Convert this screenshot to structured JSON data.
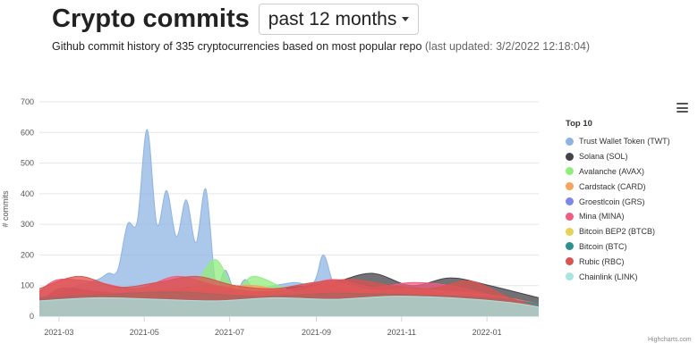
{
  "header": {
    "title": "Crypto commits",
    "range_value": "past 12 months"
  },
  "subtitle": {
    "text": "Github commit history of 335 cryptocurrencies based on most popular repo",
    "updated": "(last updated: 3/2/2022 12:18:04)"
  },
  "legend": {
    "title": "Top 10"
  },
  "credits": "Highcharts.com",
  "chart_data": {
    "type": "area",
    "title": "",
    "xlabel": "",
    "ylabel": "# commits",
    "ylim": [
      0,
      700
    ],
    "yticks": [
      0,
      100,
      200,
      300,
      400,
      500,
      600,
      700
    ],
    "xlim": [
      "2021-02-15",
      "2022-02-07"
    ],
    "xticks": [
      "2021-03",
      "2021-05",
      "2021-07",
      "2021-09",
      "2021-11",
      "2022-01"
    ],
    "grid": true,
    "legend_position": "right",
    "series": [
      {
        "name": "Trust Wallet Token (TWT)",
        "color": "#8fb4e3",
        "x": [
          "2021-02-15",
          "2021-03-01",
          "2021-03-15",
          "2021-03-29",
          "2021-04-05",
          "2021-04-12",
          "2021-04-19",
          "2021-04-26",
          "2021-05-03",
          "2021-05-10",
          "2021-05-17",
          "2021-05-24",
          "2021-05-31",
          "2021-06-07",
          "2021-06-14",
          "2021-06-21",
          "2021-06-28",
          "2021-07-05",
          "2021-07-12",
          "2021-07-19",
          "2021-08-02",
          "2021-08-16",
          "2021-08-30",
          "2021-09-06",
          "2021-09-13",
          "2021-09-20",
          "2021-10-04",
          "2021-10-18",
          "2021-11-01",
          "2021-11-15",
          "2021-11-29",
          "2021-12-13",
          "2021-12-27",
          "2022-01-10",
          "2022-01-24",
          "2022-02-07"
        ],
        "y": [
          60,
          80,
          100,
          120,
          140,
          150,
          300,
          310,
          610,
          300,
          410,
          260,
          380,
          240,
          415,
          110,
          150,
          80,
          120,
          90,
          100,
          110,
          110,
          200,
          110,
          90,
          100,
          95,
          100,
          90,
          70,
          65,
          60,
          50,
          45,
          20
        ]
      },
      {
        "name": "Solana (SOL)",
        "color": "#434348",
        "x": [
          "2021-02-15",
          "2021-03-01",
          "2021-03-29",
          "2021-04-26",
          "2021-05-24",
          "2021-06-21",
          "2021-07-19",
          "2021-08-16",
          "2021-09-13",
          "2021-10-11",
          "2021-11-08",
          "2021-12-06",
          "2022-01-03",
          "2022-02-07"
        ],
        "y": [
          30,
          90,
          80,
          70,
          90,
          100,
          80,
          95,
          110,
          140,
          100,
          125,
          100,
          60
        ]
      },
      {
        "name": "Avalanche (AVAX)",
        "color": "#90ed7d",
        "x": [
          "2021-02-15",
          "2021-03-29",
          "2021-04-26",
          "2021-05-24",
          "2021-06-07",
          "2021-06-21",
          "2021-07-05",
          "2021-07-19",
          "2021-08-16",
          "2021-09-13",
          "2021-10-11",
          "2021-11-08",
          "2021-12-06",
          "2022-01-03",
          "2022-02-07"
        ],
        "y": [
          40,
          50,
          60,
          70,
          110,
          185,
          90,
          130,
          80,
          70,
          60,
          55,
          50,
          40,
          25
        ]
      },
      {
        "name": "Cardstack (CARD)",
        "color": "#f7a35c",
        "x": [
          "2021-02-15",
          "2021-03-29",
          "2021-04-26",
          "2021-05-24",
          "2021-06-21",
          "2021-07-19",
          "2021-08-16",
          "2021-09-13",
          "2021-10-11",
          "2021-11-08",
          "2021-12-06",
          "2022-01-03",
          "2022-02-07"
        ],
        "y": [
          50,
          70,
          80,
          90,
          95,
          100,
          80,
          110,
          85,
          90,
          80,
          70,
          40
        ]
      },
      {
        "name": "Groestlcoin (GRS)",
        "color": "#8085e9",
        "x": [
          "2021-02-15",
          "2021-04-12",
          "2021-06-07",
          "2021-08-02",
          "2021-09-27",
          "2021-11-22",
          "2022-02-07"
        ],
        "y": [
          40,
          50,
          45,
          60,
          50,
          45,
          30
        ]
      },
      {
        "name": "Mina (MINA)",
        "color": "#f15c80",
        "x": [
          "2021-02-15",
          "2021-03-01",
          "2021-03-29",
          "2021-04-26",
          "2021-05-24",
          "2021-06-21",
          "2021-07-19",
          "2021-08-16",
          "2021-09-13",
          "2021-10-11",
          "2021-11-08",
          "2021-12-06",
          "2022-01-03",
          "2022-02-07"
        ],
        "y": [
          80,
          120,
          110,
          90,
          130,
          100,
          80,
          90,
          120,
          95,
          110,
          100,
          70,
          40
        ]
      },
      {
        "name": "Bitcoin BEP2 (BTCB)",
        "color": "#e4d354",
        "x": [
          "2021-02-15",
          "2021-04-12",
          "2021-06-07",
          "2021-08-02",
          "2021-09-27",
          "2021-11-22",
          "2022-02-07"
        ],
        "y": [
          20,
          30,
          40,
          35,
          50,
          40,
          20
        ]
      },
      {
        "name": "Bitcoin (BTC)",
        "color": "#2b908f",
        "x": [
          "2021-02-15",
          "2021-03-29",
          "2021-05-24",
          "2021-07-19",
          "2021-09-13",
          "2021-11-08",
          "2022-01-03",
          "2022-02-07"
        ],
        "y": [
          60,
          70,
          80,
          65,
          75,
          70,
          60,
          40
        ]
      },
      {
        "name": "Rubic (RBC)",
        "color": "#d9534f",
        "x": [
          "2021-02-15",
          "2021-03-15",
          "2021-04-12",
          "2021-05-10",
          "2021-06-07",
          "2021-07-05",
          "2021-08-02",
          "2021-08-30",
          "2021-09-27",
          "2021-10-25",
          "2021-11-22",
          "2021-12-20",
          "2022-01-17",
          "2022-02-07"
        ],
        "y": [
          90,
          130,
          95,
          110,
          130,
          100,
          90,
          110,
          120,
          100,
          90,
          115,
          60,
          30
        ]
      },
      {
        "name": "Chainlink (LINK)",
        "color": "#a9e5e0",
        "x": [
          "2021-02-15",
          "2021-03-29",
          "2021-05-10",
          "2021-06-21",
          "2021-08-02",
          "2021-09-13",
          "2021-10-25",
          "2021-12-06",
          "2022-01-17",
          "2022-02-07"
        ],
        "y": [
          50,
          60,
          55,
          50,
          60,
          55,
          65,
          60,
          45,
          30
        ]
      }
    ]
  }
}
